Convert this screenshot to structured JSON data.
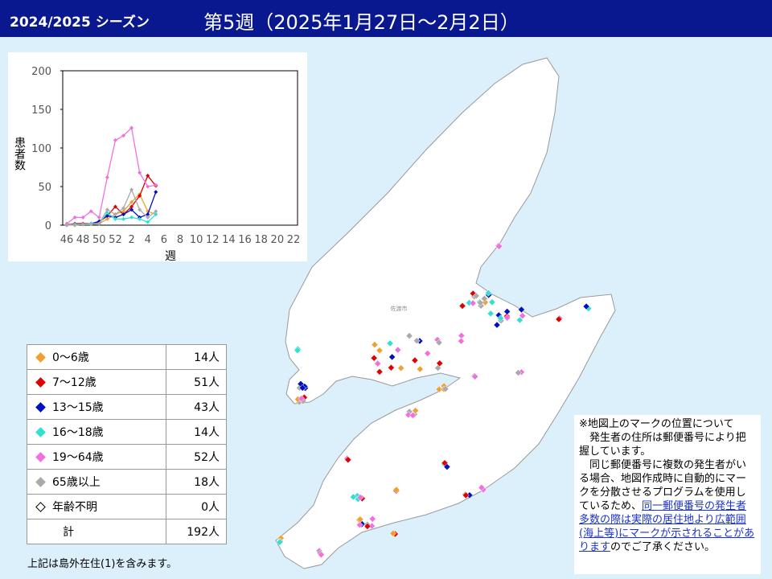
{
  "header": {
    "season": "2024/2025 シーズン",
    "week": "第5週（2025年1月27日～2月2日）"
  },
  "chart_data": {
    "type": "line",
    "ylabel": "患者数",
    "xlabel": "週",
    "categories": [
      "46",
      null,
      "48",
      null,
      "50",
      null,
      "52",
      null,
      "2",
      null,
      "4",
      null,
      "6",
      null,
      "8",
      null,
      "10",
      null,
      "12",
      null,
      "14",
      null,
      "16",
      null,
      "18",
      null,
      "20",
      null,
      "22"
    ],
    "ylim": [
      0,
      200
    ],
    "yticks": [
      0,
      50,
      100,
      150,
      200
    ],
    "series": [
      {
        "name": "0～6歳",
        "color": "#f0a030",
        "values": [
          2,
          0,
          1,
          1,
          2,
          8,
          14,
          18,
          30,
          40,
          18,
          14,
          null,
          null,
          null,
          null,
          null,
          null,
          null,
          null,
          null,
          null,
          null,
          null,
          null,
          null,
          null,
          null,
          null
        ]
      },
      {
        "name": "7～12歳",
        "color": "#e00000",
        "values": [
          0,
          2,
          2,
          2,
          4,
          12,
          24,
          14,
          24,
          38,
          64,
          51,
          null,
          null,
          null,
          null,
          null,
          null,
          null,
          null,
          null,
          null,
          null,
          null,
          null,
          null,
          null,
          null,
          null
        ]
      },
      {
        "name": "13～15歳",
        "color": "#0010c0",
        "values": [
          0,
          1,
          1,
          2,
          5,
          12,
          10,
          14,
          20,
          10,
          14,
          43,
          null,
          null,
          null,
          null,
          null,
          null,
          null,
          null,
          null,
          null,
          null,
          null,
          null,
          null,
          null,
          null,
          null
        ]
      },
      {
        "name": "16～18歳",
        "color": "#30e0d0",
        "values": [
          0,
          1,
          1,
          2,
          2,
          16,
          8,
          8,
          10,
          8,
          4,
          14,
          null,
          null,
          null,
          null,
          null,
          null,
          null,
          null,
          null,
          null,
          null,
          null,
          null,
          null,
          null,
          null,
          null
        ]
      },
      {
        "name": "19～64歳",
        "color": "#f070e0",
        "values": [
          2,
          10,
          10,
          18,
          10,
          62,
          110,
          116,
          126,
          68,
          50,
          52,
          null,
          null,
          null,
          null,
          null,
          null,
          null,
          null,
          null,
          null,
          null,
          null,
          null,
          null,
          null,
          null,
          null
        ]
      },
      {
        "name": "65歳以上",
        "color": "#aaaaaa",
        "values": [
          0,
          0,
          1,
          1,
          2,
          20,
          14,
          22,
          46,
          20,
          10,
          18,
          null,
          null,
          null,
          null,
          null,
          null,
          null,
          null,
          null,
          null,
          null,
          null,
          null,
          null,
          null,
          null,
          null
        ]
      }
    ]
  },
  "table": {
    "rows": [
      {
        "label": "0～6歳",
        "count": "14人",
        "color": "#f0a030"
      },
      {
        "label": "7～12歳",
        "count": "51人",
        "color": "#e00000"
      },
      {
        "label": "13～15歳",
        "count": "43人",
        "color": "#0010c0"
      },
      {
        "label": "16～18歳",
        "count": "14人",
        "color": "#30e0d0"
      },
      {
        "label": "19～64歳",
        "count": "52人",
        "color": "#f070e0"
      },
      {
        "label": "65歳以上",
        "count": "18人",
        "color": "#aaaaaa"
      },
      {
        "label": "年齢不明",
        "count": "0人",
        "color": "#000000",
        "marker": "hollow"
      }
    ],
    "total": {
      "label": "計",
      "count": "192人"
    },
    "footnote": "上記は島外在住(1)を含みます。"
  },
  "map": {
    "city": "佐渡市"
  },
  "note": {
    "title": "※地図上のマークの位置について",
    "p1": "発生者の住所は郵便番号により把握しています。",
    "p2": "同じ郵便番号に複数の発生者がいる場合、地図作成時に自動的にマークを分散させるプログラムを使用しているため、",
    "link": "同一郵便番号の発生者多数の際は実際の居住地より広範囲(海上等)にマークが示されることがあります",
    "p3": "のでご了承ください。"
  }
}
